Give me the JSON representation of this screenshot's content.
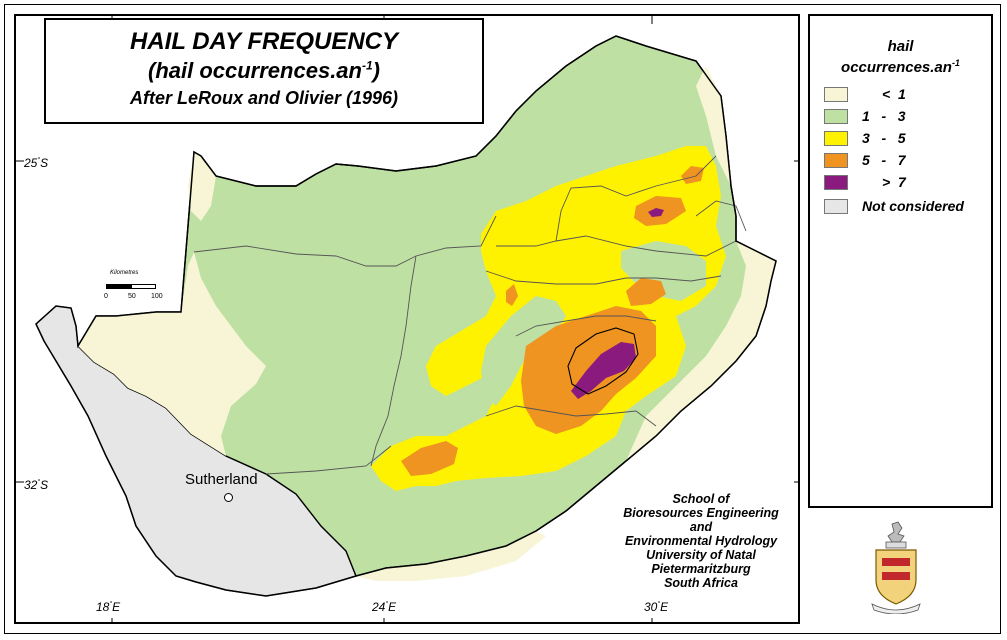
{
  "title": {
    "line1": "HAIL DAY FREQUENCY",
    "line2_main": "(hail occurrences.an",
    "line2_sup": "-1",
    "line2_end": ")",
    "line3": "After LeRoux and Olivier (1996)"
  },
  "legend": {
    "title_line1": "hail",
    "title_line2": "occurrences.an",
    "title_sup": "-1",
    "items": [
      {
        "label": "<  1",
        "color": "#f7f5d5"
      },
      {
        "label": "1   -   3",
        "color": "#bfe0a3"
      },
      {
        "label": "3   -   5",
        "color": "#fff200"
      },
      {
        "label": "5   -   7",
        "color": "#ef9321"
      },
      {
        "label": ">  7",
        "color": "#8b1a7e"
      },
      {
        "label": "Not considered",
        "color": "#e6e6e6"
      }
    ]
  },
  "credit": {
    "lines": [
      "School of",
      "Bioresources Engineering",
      "and",
      "Environmental Hydrology",
      "University of Natal",
      "Pietermaritzburg",
      "South Africa"
    ]
  },
  "coordinates": {
    "lat_25": "25",
    "lat_32": "32",
    "lat_unit": "S",
    "lon_18": "18",
    "lon_24": "24",
    "lon_30": "30",
    "lon_unit": "E",
    "degree": "°"
  },
  "scalebar": {
    "title": "Kilometres",
    "ticks": [
      "0",
      "50",
      "100"
    ]
  },
  "place": {
    "name": "Sutherland"
  },
  "colors": {
    "outline": "#000000",
    "border_line": "#555555"
  }
}
